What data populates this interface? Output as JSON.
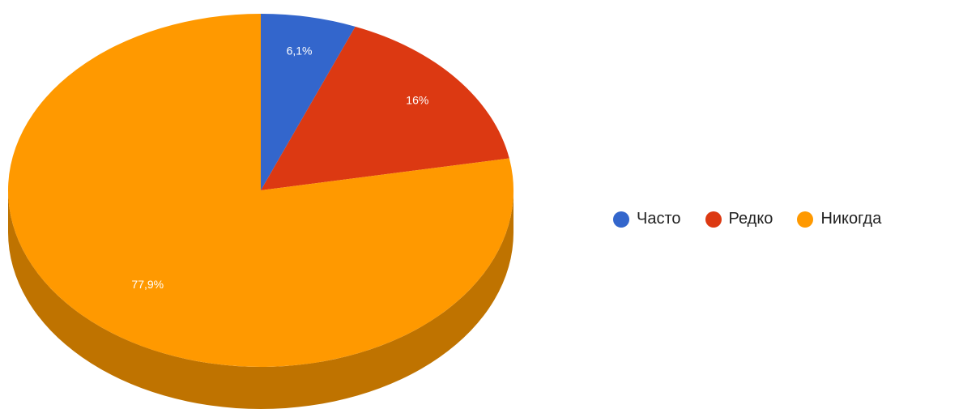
{
  "chart_data": {
    "type": "pie",
    "style": "3d",
    "slices": [
      {
        "name": "Часто",
        "value": 6.1,
        "label": "6,1%",
        "color": "#3366cc",
        "side_color": "#26509b"
      },
      {
        "name": "Редко",
        "value": 16,
        "label": "16%",
        "color": "#dc3912",
        "side_color": "#a52b0e"
      },
      {
        "name": "Никогда",
        "value": 77.9,
        "label": "77,9%",
        "color": "#ff9900",
        "side_color": "#bf7300"
      }
    ],
    "legend_position": "right"
  }
}
